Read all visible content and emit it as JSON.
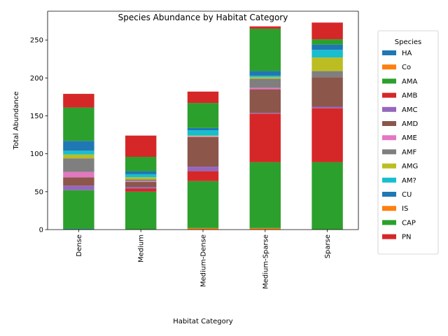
{
  "chart_data": {
    "type": "bar",
    "stacked": true,
    "title": "Species Abundance by Habitat Category",
    "xlabel": "Habitat Category",
    "ylabel": "Total Abundance",
    "ylim": [
      0,
      288
    ],
    "yticks": [
      0,
      50,
      100,
      150,
      200,
      250
    ],
    "categories": [
      "Dense",
      "Medium",
      "Medium-Dense",
      "Medium-Sparse",
      "Sparse"
    ],
    "legend": {
      "title": "Species",
      "placement": "outside-right"
    },
    "grid": false,
    "series": [
      {
        "name": "HA",
        "color": "#1f77b4",
        "values": [
          1,
          0,
          0,
          0,
          0
        ]
      },
      {
        "name": "Co",
        "color": "#ff7f0e",
        "values": [
          0,
          0,
          2,
          2,
          0
        ]
      },
      {
        "name": "AMA",
        "color": "#2ca02c",
        "values": [
          51,
          50,
          62,
          87,
          89
        ]
      },
      {
        "name": "AMB",
        "color": "#d62728",
        "values": [
          0,
          4,
          13,
          64,
          71
        ]
      },
      {
        "name": "AMC",
        "color": "#9467bd",
        "values": [
          6,
          2,
          6,
          1,
          2
        ]
      },
      {
        "name": "AMD",
        "color": "#8c564b",
        "values": [
          11,
          7,
          39,
          31,
          39
        ]
      },
      {
        "name": "AME",
        "color": "#e377c2",
        "values": [
          7,
          1,
          1,
          2,
          0
        ]
      },
      {
        "name": "AMF",
        "color": "#7f7f7f",
        "values": [
          18,
          2,
          0,
          12,
          8
        ]
      },
      {
        "name": "AMG",
        "color": "#bcbd22",
        "values": [
          5,
          3,
          1,
          2,
          18
        ]
      },
      {
        "name": "AM?",
        "color": "#17becf",
        "values": [
          5,
          4,
          7,
          2,
          10
        ]
      },
      {
        "name": "CU",
        "color": "#1f77b4",
        "values": [
          13,
          4,
          3,
          6,
          7
        ]
      },
      {
        "name": "IS",
        "color": "#ff7f0e",
        "values": [
          0,
          0,
          0,
          0,
          0
        ]
      },
      {
        "name": "CAP",
        "color": "#2ca02c",
        "values": [
          44,
          19,
          33,
          56,
          7
        ]
      },
      {
        "name": "PN",
        "color": "#d62728",
        "values": [
          18,
          28,
          15,
          3,
          22
        ]
      }
    ]
  }
}
